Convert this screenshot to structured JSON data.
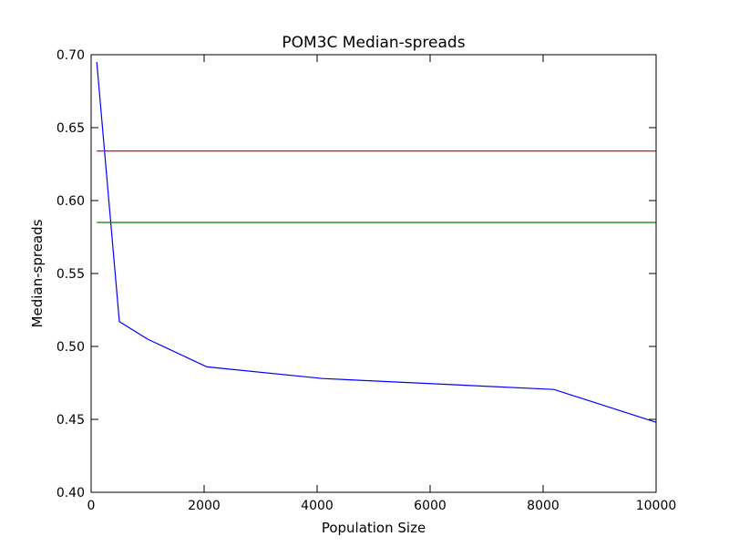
{
  "chart_data": {
    "type": "line",
    "title": "POM3C Median-spreads",
    "xlabel": "Population Size",
    "ylabel": "Median-spreads",
    "xlim": [
      0,
      10000
    ],
    "ylim": [
      0.4,
      0.7
    ],
    "x_ticks": [
      0,
      2000,
      4000,
      6000,
      8000,
      10000
    ],
    "x_tick_labels": [
      "0",
      "2000",
      "4000",
      "6000",
      "8000",
      "10000"
    ],
    "y_ticks": [
      0.4,
      0.45,
      0.5,
      0.55,
      0.6,
      0.65,
      0.7
    ],
    "y_tick_labels": [
      "0.40",
      "0.45",
      "0.50",
      "0.55",
      "0.60",
      "0.65",
      "0.70"
    ],
    "grid": false,
    "series": [
      {
        "color": "#0000ff",
        "x": [
          100,
          500,
          1000,
          2048,
          4096,
          8192,
          10000
        ],
        "y": [
          0.695,
          0.517,
          0.505,
          0.486,
          0.478,
          0.4705,
          0.448
        ]
      },
      {
        "color": "#ff0000",
        "x": [
          100,
          10000
        ],
        "y": [
          0.634,
          0.634
        ]
      },
      {
        "color": "#008000",
        "x": [
          100,
          10000
        ],
        "y": [
          0.585,
          0.585
        ]
      }
    ]
  }
}
